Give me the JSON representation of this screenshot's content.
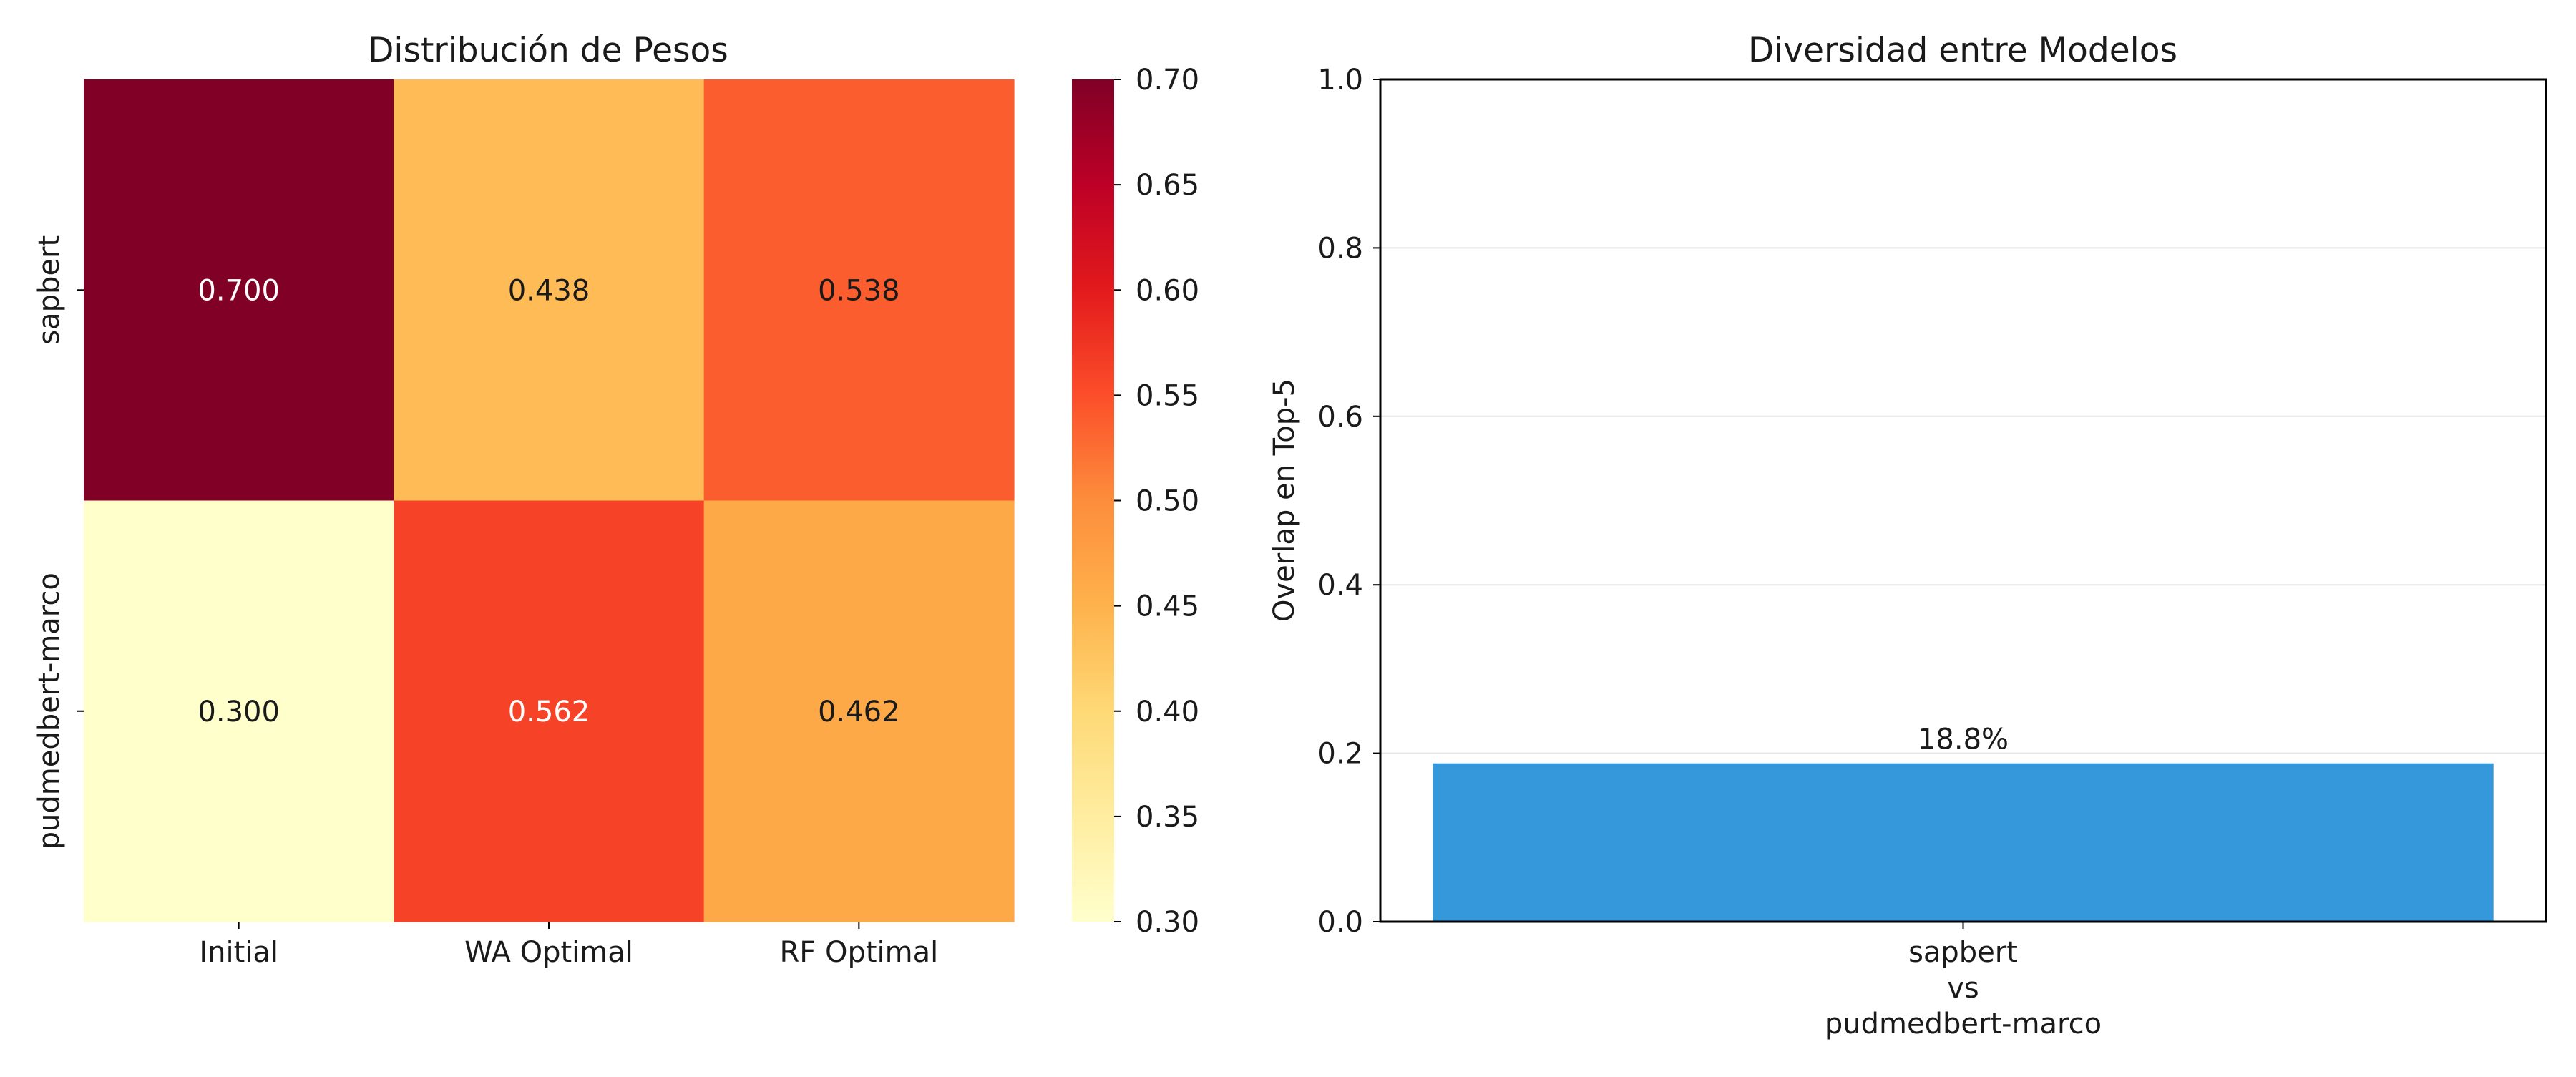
{
  "chart_data": [
    {
      "type": "heatmap",
      "title": "Distribución de Pesos",
      "rows": [
        "sapbert",
        "pudmedbert-marco"
      ],
      "columns": [
        "Initial",
        "WA Optimal",
        "RF Optimal"
      ],
      "values": [
        [
          0.7,
          0.438,
          0.538
        ],
        [
          0.3,
          0.562,
          0.462
        ]
      ],
      "cell_labels": [
        [
          "0.700",
          "0.438",
          "0.538"
        ],
        [
          "0.300",
          "0.562",
          "0.462"
        ]
      ],
      "colormap": "YlOrRd",
      "colorbar": {
        "range": [
          0.3,
          0.7
        ],
        "ticks": [
          "0.30",
          "0.35",
          "0.40",
          "0.45",
          "0.50",
          "0.55",
          "0.60",
          "0.65",
          "0.70"
        ]
      }
    },
    {
      "type": "bar",
      "title": "Diversidad entre Modelos",
      "categories": [
        [
          "sapbert",
          "vs",
          "pudmedbert-marco"
        ]
      ],
      "values": [
        0.188
      ],
      "value_labels": [
        "18.8%"
      ],
      "xlabel": "",
      "ylabel": "Overlap en Top-5",
      "ylim": [
        0,
        1.0
      ],
      "y_ticks": [
        "0.0",
        "0.2",
        "0.4",
        "0.6",
        "0.8",
        "1.0"
      ],
      "grid": "y",
      "bar_color": "#3498db"
    }
  ]
}
